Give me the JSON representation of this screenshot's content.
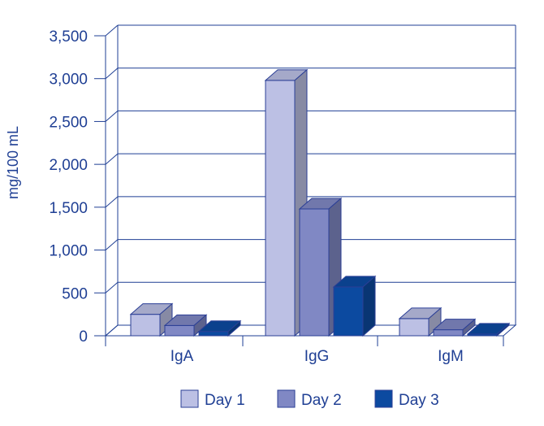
{
  "chart_data": {
    "type": "bar",
    "ylabel": "mg/100 mL",
    "xlabel": "",
    "categories": [
      "IgA",
      "IgG",
      "IgM"
    ],
    "series": [
      {
        "name": "Day 1",
        "values": [
          250,
          2980,
          200
        ],
        "color": "#bcc0e4"
      },
      {
        "name": "Day 2",
        "values": [
          120,
          1480,
          70
        ],
        "color": "#8088c4"
      },
      {
        "name": "Day 3",
        "values": [
          50,
          570,
          20
        ],
        "color": "#0c4aa0"
      }
    ],
    "ylim": [
      0,
      3500
    ],
    "yticks": [
      {
        "value": 0,
        "label": "0"
      },
      {
        "value": 500,
        "label": "500"
      },
      {
        "value": 1000,
        "label": "1,000"
      },
      {
        "value": 1500,
        "label": "1,500"
      },
      {
        "value": 2000,
        "label": "2,000"
      },
      {
        "value": 2500,
        "label": "2,500"
      },
      {
        "value": 3000,
        "label": "3,000"
      },
      {
        "value": 3500,
        "label": "3,500"
      }
    ],
    "grid": true,
    "legend_position": "bottom",
    "colors": {
      "axis": "#1f3f94",
      "grid": "#1f3f94",
      "text": "#1f3f94"
    }
  }
}
